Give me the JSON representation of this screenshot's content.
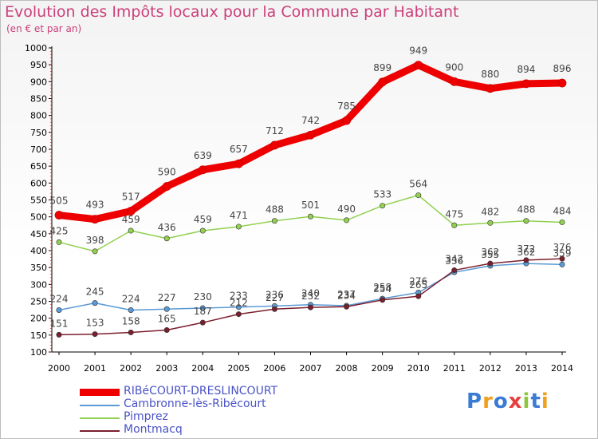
{
  "header": {
    "title": "Evolution des Impôts locaux pour la Commune par Habitant",
    "subtitle": "(en € et par an)"
  },
  "logo": {
    "text": "Proxiti"
  },
  "colors": {
    "ribecourt": "#ee0000",
    "cambronne": "#5b9bd5",
    "pimprez": "#92d050",
    "montmacq": "#7b1f2e"
  },
  "chart_data": {
    "type": "line",
    "title": "Evolution des Impôts locaux pour la Commune par Habitant",
    "subtitle": "(en € et par an)",
    "x": [
      "2000",
      "2001",
      "2002",
      "2003",
      "2004",
      "2005",
      "2006",
      "2007",
      "2008",
      "2009",
      "2010",
      "2011",
      "2012",
      "2013",
      "2014"
    ],
    "ylim": [
      100,
      1000
    ],
    "yticks": [
      100,
      150,
      200,
      250,
      300,
      350,
      400,
      450,
      500,
      550,
      600,
      650,
      700,
      750,
      800,
      850,
      900,
      950,
      1000
    ],
    "grid": false,
    "legend": "bottom-left",
    "series": [
      {
        "name": "RIBéCOURT-DRESLINCOURT",
        "color": "#ee0000",
        "values": [
          505,
          493,
          517,
          590,
          639,
          657,
          712,
          742,
          785,
          899,
          949,
          900,
          880,
          894,
          896
        ]
      },
      {
        "name": "Cambronne-lès-Ribécourt",
        "color": "#5b9bd5",
        "values": [
          224,
          245,
          224,
          227,
          230,
          233,
          236,
          240,
          237,
          258,
          276,
          336,
          355,
          362,
          359
        ]
      },
      {
        "name": "Pimprez",
        "color": "#92d050",
        "values": [
          425,
          398,
          459,
          436,
          459,
          471,
          488,
          501,
          490,
          533,
          564,
          475,
          482,
          488,
          484
        ]
      },
      {
        "name": "Montmacq",
        "color": "#7b1f2e",
        "values": [
          151,
          153,
          158,
          165,
          187,
          212,
          227,
          232,
          234,
          254,
          265,
          342,
          362,
          372,
          376
        ]
      }
    ]
  }
}
